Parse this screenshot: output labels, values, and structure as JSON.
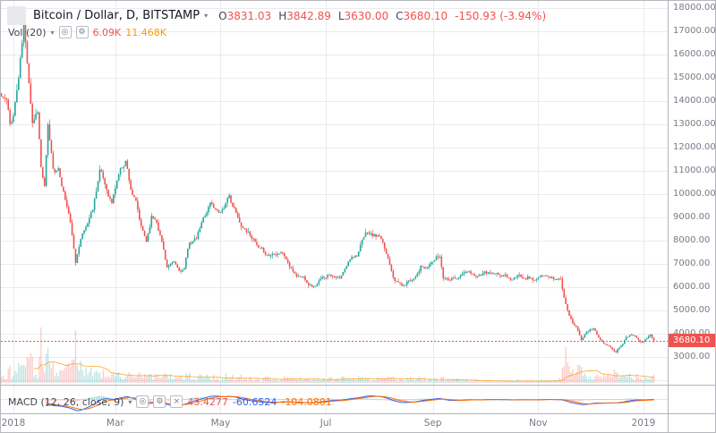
{
  "header": {
    "symbol_title": "Bitcoin / Dollar, D, BITSTAMP",
    "ohlc": [
      {
        "label": "O",
        "value": "3831.03"
      },
      {
        "label": "H",
        "value": "3842.89"
      },
      {
        "label": "L",
        "value": "3630.00"
      },
      {
        "label": "C",
        "value": "3680.10"
      }
    ],
    "change": "-150.93 (-3.94%)"
  },
  "volume_legend": {
    "label": "Vol (20)",
    "current": "6.09K",
    "ma": "11.468K"
  },
  "macd_legend": {
    "label": "MACD (12, 26, close, 9)",
    "hist": "43.4277",
    "macd": "-60.6524",
    "signal": "-104.0801"
  },
  "last_price": "3680.10",
  "icons": {
    "chevron_down": "▾",
    "eye": "◎",
    "settings": "⚙",
    "close": "×"
  },
  "colors": {
    "up": "#26a69a",
    "down": "#ef5350",
    "vol_up": "rgba(38,166,154,0.30)",
    "vol_down": "rgba(239,83,80,0.30)",
    "vol_ma": "rgba(255,152,0,0.85)",
    "macd_line": "#2962ff",
    "signal_line": "#ff6d00",
    "hist_pos": "rgba(38,166,154,0.55)",
    "hist_neg": "rgba(239,83,80,0.55)",
    "grid": "#e9ebef",
    "axis_text": "#787b86",
    "legend_red": "#ef5350",
    "legend_orange": "#ff9800",
    "label_bg": "#ef5350"
  },
  "chart_data": {
    "type": "candlestick",
    "title": "Bitcoin / Dollar, D, BITSTAMP",
    "legend_indicators": [
      "Vol (20)",
      "MACD (12, 26, close, 9)"
    ],
    "ohlc_display": {
      "open": 3831.03,
      "high": 3842.89,
      "low": 3630.0,
      "close": 3680.1,
      "change": -150.93,
      "change_pct": -3.94
    },
    "last_price_value": 3680.1,
    "y_axis": {
      "min": 3000,
      "max": 18000,
      "step": 1000,
      "ticks": [
        "18000.00",
        "17000.00",
        "16000.00",
        "15000.00",
        "14000.00",
        "13000.00",
        "12000.00",
        "11000.00",
        "10000.00",
        "9000.00",
        "8000.00",
        "7000.00",
        "6000.00",
        "5000.00",
        "4000.00",
        "3000.00"
      ]
    },
    "x_axis": {
      "ticks": [
        {
          "pos": 0,
          "label": "2018"
        },
        {
          "pos": 59,
          "label": "Mar"
        },
        {
          "pos": 120,
          "label": "May"
        },
        {
          "pos": 181,
          "label": "Jul"
        },
        {
          "pos": 243,
          "label": "Sep"
        },
        {
          "pos": 304,
          "label": "Nov"
        },
        {
          "pos": 365,
          "label": "2019"
        }
      ]
    },
    "price_anchors": [
      [
        -7,
        14200
      ],
      [
        -4,
        14000
      ],
      [
        -2,
        12900
      ],
      [
        0,
        13400
      ],
      [
        3,
        15000
      ],
      [
        6,
        17150
      ],
      [
        9,
        14900
      ],
      [
        11,
        13200
      ],
      [
        14,
        13700
      ],
      [
        16,
        11200
      ],
      [
        18,
        10300
      ],
      [
        20,
        12800
      ],
      [
        23,
        11100
      ],
      [
        26,
        11000
      ],
      [
        29,
        10100
      ],
      [
        32,
        9150
      ],
      [
        34,
        8250
      ],
      [
        36,
        6950
      ],
      [
        39,
        8200
      ],
      [
        42,
        8600
      ],
      [
        46,
        9400
      ],
      [
        50,
        11100
      ],
      [
        53,
        10400
      ],
      [
        57,
        9650
      ],
      [
        61,
        10900
      ],
      [
        65,
        11500
      ],
      [
        68,
        10300
      ],
      [
        71,
        9600
      ],
      [
        74,
        8500
      ],
      [
        77,
        7950
      ],
      [
        80,
        9050
      ],
      [
        83,
        8900
      ],
      [
        86,
        8000
      ],
      [
        89,
        6900
      ],
      [
        93,
        7000
      ],
      [
        96,
        6650
      ],
      [
        99,
        6800
      ],
      [
        102,
        7900
      ],
      [
        106,
        8050
      ],
      [
        110,
        8900
      ],
      [
        114,
        9650
      ],
      [
        117,
        9350
      ],
      [
        120,
        9300
      ],
      [
        123,
        9650
      ],
      [
        125,
        9820
      ],
      [
        128,
        9350
      ],
      [
        131,
        8700
      ],
      [
        135,
        8450
      ],
      [
        138,
        8250
      ],
      [
        142,
        7600
      ],
      [
        145,
        7450
      ],
      [
        148,
        7350
      ],
      [
        151,
        7500
      ],
      [
        155,
        7600
      ],
      [
        158,
        7250
      ],
      [
        161,
        6750
      ],
      [
        164,
        6500
      ],
      [
        168,
        6450
      ],
      [
        171,
        6200
      ],
      [
        174,
        6050
      ],
      [
        177,
        6250
      ],
      [
        180,
        6400
      ],
      [
        183,
        6600
      ],
      [
        186,
        6550
      ],
      [
        189,
        6350
      ],
      [
        192,
        6700
      ],
      [
        196,
        7350
      ],
      [
        199,
        7450
      ],
      [
        202,
        7950
      ],
      [
        205,
        8350
      ],
      [
        208,
        8200
      ],
      [
        212,
        8150
      ],
      [
        215,
        7550
      ],
      [
        218,
        7000
      ],
      [
        220,
        6550
      ],
      [
        222,
        6300
      ],
      [
        226,
        6050
      ],
      [
        229,
        6300
      ],
      [
        232,
        6450
      ],
      [
        236,
        6950
      ],
      [
        239,
        6750
      ],
      [
        242,
        7050
      ],
      [
        245,
        7250
      ],
      [
        247,
        7300
      ],
      [
        249,
        6450
      ],
      [
        252,
        6400
      ],
      [
        255,
        6500
      ],
      [
        258,
        6450
      ],
      [
        262,
        6650
      ],
      [
        266,
        6500
      ],
      [
        270,
        6550
      ],
      [
        273,
        6600
      ],
      [
        277,
        6550
      ],
      [
        281,
        6450
      ],
      [
        285,
        6500
      ],
      [
        288,
        6350
      ],
      [
        292,
        6450
      ],
      [
        295,
        6450
      ],
      [
        298,
        6500
      ],
      [
        301,
        6350
      ],
      [
        305,
        6400
      ],
      [
        310,
        6400
      ],
      [
        314,
        6350
      ],
      [
        317,
        6350
      ],
      [
        319,
        5550
      ],
      [
        321,
        5050
      ],
      [
        322,
        4850
      ],
      [
        324,
        4450
      ],
      [
        326,
        4350
      ],
      [
        329,
        3800
      ],
      [
        331,
        4050
      ],
      [
        334,
        4150
      ],
      [
        336,
        4250
      ],
      [
        338,
        4000
      ],
      [
        340,
        3750
      ],
      [
        342,
        3550
      ],
      [
        344,
        3450
      ],
      [
        346,
        3400
      ],
      [
        349,
        3250
      ],
      [
        351,
        3450
      ],
      [
        353,
        3650
      ],
      [
        355,
        3850
      ],
      [
        358,
        4050
      ],
      [
        360,
        3950
      ],
      [
        361,
        3850
      ],
      [
        363,
        3750
      ],
      [
        365,
        3750
      ],
      [
        367,
        3900
      ],
      [
        369,
        3950
      ],
      [
        370,
        3831
      ],
      [
        371,
        3680
      ]
    ],
    "volume_profile": [
      [
        -7,
        0.8
      ],
      [
        0,
        0.85
      ],
      [
        8,
        1.0
      ],
      [
        20,
        0.95
      ],
      [
        36,
        1.0
      ],
      [
        45,
        0.75
      ],
      [
        60,
        0.6
      ],
      [
        80,
        0.55
      ],
      [
        100,
        0.5
      ],
      [
        120,
        0.45
      ],
      [
        140,
        0.4
      ],
      [
        160,
        0.42
      ],
      [
        180,
        0.38
      ],
      [
        200,
        0.42
      ],
      [
        220,
        0.4
      ],
      [
        240,
        0.33
      ],
      [
        260,
        0.28
      ],
      [
        280,
        0.2
      ],
      [
        300,
        0.2
      ],
      [
        312,
        0.3
      ],
      [
        317,
        0.55
      ],
      [
        320,
        1.0
      ],
      [
        325,
        0.9
      ],
      [
        330,
        0.7
      ],
      [
        336,
        0.55
      ],
      [
        342,
        0.6
      ],
      [
        348,
        0.65
      ],
      [
        354,
        0.55
      ],
      [
        360,
        0.5
      ],
      [
        366,
        0.4
      ],
      [
        371,
        0.35
      ]
    ],
    "volume_spikes": [
      [
        16,
        1.8
      ],
      [
        36,
        2.2
      ],
      [
        320,
        1.6
      ],
      [
        329,
        1.3
      ],
      [
        349,
        1.2
      ]
    ]
  }
}
